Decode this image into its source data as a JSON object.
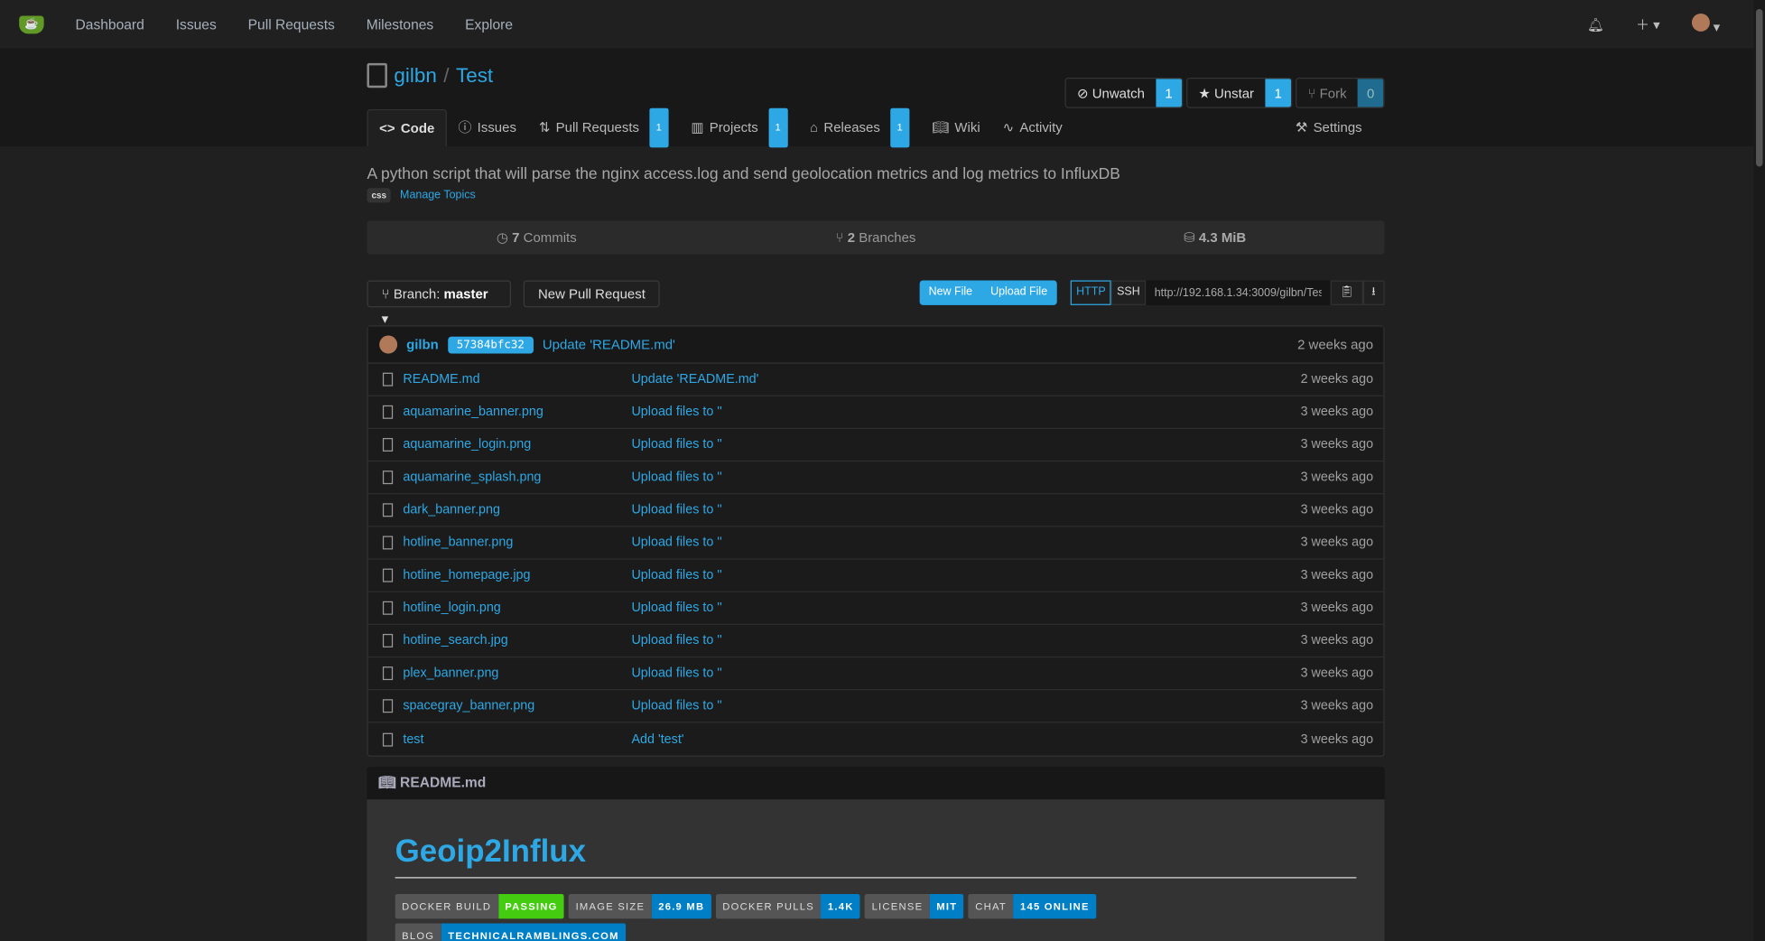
{
  "nav": {
    "items": [
      "Dashboard",
      "Issues",
      "Pull Requests",
      "Milestones",
      "Explore"
    ]
  },
  "repo": {
    "owner": "gilbn",
    "name": "Test",
    "unwatch": "Unwatch",
    "watch_count": "1",
    "unstar": "Unstar",
    "star_count": "1",
    "fork": "Fork",
    "fork_count": "0"
  },
  "tabs": [
    {
      "label": "Code"
    },
    {
      "label": "Issues"
    },
    {
      "label": "Pull Requests",
      "count": "1"
    },
    {
      "label": "Projects",
      "count": "1"
    },
    {
      "label": "Releases",
      "count": "1"
    },
    {
      "label": "Wiki"
    },
    {
      "label": "Activity"
    }
  ],
  "settings": "Settings",
  "description": "A python script that will parse the nginx access.log and send geolocation metrics and log metrics to InfluxDB",
  "topic": "css",
  "manage_topics": "Manage Topics",
  "stats": {
    "commits_n": "7",
    "commits": "Commits",
    "branches_n": "2",
    "branches": "Branches",
    "size": "4.3 MiB"
  },
  "toolbar": {
    "branch_label": "Branch:",
    "branch": "master",
    "new_pr": "New Pull Request",
    "new_file": "New File",
    "upload_file": "Upload File",
    "http": "HTTP",
    "ssh": "SSH",
    "clone_url": "http://192.168.1.34:3009/gilbn/Tes"
  },
  "commit": {
    "author": "gilbn",
    "sha": "57384bfc32",
    "message": "Update 'README.md'",
    "time": "2 weeks ago"
  },
  "files": [
    {
      "name": "README.md",
      "msg": "Update 'README.md'",
      "time": "2 weeks ago"
    },
    {
      "name": "aquamarine_banner.png",
      "msg": "Upload files to ''",
      "time": "3 weeks ago"
    },
    {
      "name": "aquamarine_login.png",
      "msg": "Upload files to ''",
      "time": "3 weeks ago"
    },
    {
      "name": "aquamarine_splash.png",
      "msg": "Upload files to ''",
      "time": "3 weeks ago"
    },
    {
      "name": "dark_banner.png",
      "msg": "Upload files to ''",
      "time": "3 weeks ago"
    },
    {
      "name": "hotline_banner.png",
      "msg": "Upload files to ''",
      "time": "3 weeks ago"
    },
    {
      "name": "hotline_homepage.jpg",
      "msg": "Upload files to ''",
      "time": "3 weeks ago"
    },
    {
      "name": "hotline_login.png",
      "msg": "Upload files to ''",
      "time": "3 weeks ago"
    },
    {
      "name": "hotline_search.jpg",
      "msg": "Upload files to ''",
      "time": "3 weeks ago"
    },
    {
      "name": "plex_banner.png",
      "msg": "Upload files to ''",
      "time": "3 weeks ago"
    },
    {
      "name": "spacegray_banner.png",
      "msg": "Upload files to ''",
      "time": "3 weeks ago"
    },
    {
      "name": "test",
      "msg": "Add 'test'",
      "time": "3 weeks ago"
    }
  ],
  "readme": {
    "file": "README.md",
    "title": "Geoip2Influx",
    "shields": [
      {
        "l": "DOCKER BUILD",
        "r": "PASSING",
        "color": "#4c1"
      },
      {
        "l": "IMAGE SIZE",
        "r": "26.9 MB"
      },
      {
        "l": "DOCKER PULLS",
        "r": "1.4K"
      },
      {
        "l": "LICENSE",
        "r": "MIT"
      },
      {
        "l": "CHAT",
        "r": "145 ONLINE"
      },
      {
        "l": "BLOG",
        "r": "TECHNICALRAMBLINGS.COM"
      }
    ]
  }
}
